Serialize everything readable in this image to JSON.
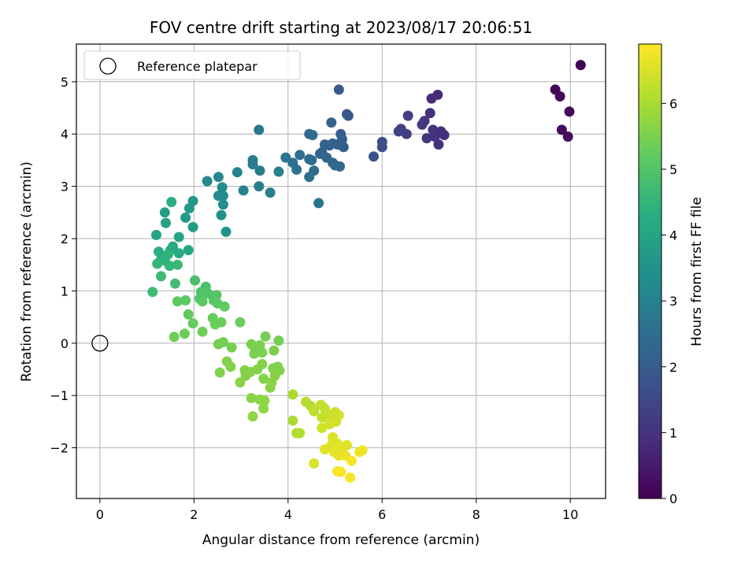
{
  "chart_data": {
    "type": "scatter",
    "title": "FOV centre drift starting at 2023/08/17 20:06:51",
    "xlabel": "Angular distance from reference (arcmin)",
    "ylabel": "Rotation from reference (arcmin)",
    "xlim": [
      -0.5,
      10.75
    ],
    "ylim": [
      -2.97,
      5.72
    ],
    "xticks": [
      0,
      2,
      4,
      6,
      8,
      10
    ],
    "yticks": [
      -2,
      -1,
      0,
      1,
      2,
      3,
      4,
      5
    ],
    "xtick_labels": [
      "0",
      "2",
      "4",
      "6",
      "8",
      "10"
    ],
    "ytick_labels": [
      "−2",
      "−1",
      "0",
      "1",
      "2",
      "3",
      "4",
      "5"
    ],
    "grid": true,
    "legend": {
      "placement": "top-left",
      "entries": [
        "Reference platepar"
      ]
    },
    "reference_point": {
      "x": 0,
      "y": 0,
      "marker": "hollow-circle"
    },
    "colorbar": {
      "label": "Hours from first FF file",
      "colormap": "viridis",
      "range": [
        0,
        6.9
      ],
      "ticks": [
        0,
        1,
        2,
        3,
        4,
        5,
        6
      ],
      "tick_labels": [
        "0",
        "1",
        "2",
        "3",
        "4",
        "5",
        "6"
      ]
    },
    "series": [
      {
        "points": [
          {
            "x": 10.22,
            "y": 5.32,
            "c": 0.0
          },
          {
            "x": 9.68,
            "y": 4.85,
            "c": 0.08
          },
          {
            "x": 9.78,
            "y": 4.72,
            "c": 0.12
          },
          {
            "x": 9.98,
            "y": 4.43,
            "c": 0.15
          },
          {
            "x": 9.82,
            "y": 4.08,
            "c": 0.2
          },
          {
            "x": 9.95,
            "y": 3.95,
            "c": 0.22
          },
          {
            "x": 7.18,
            "y": 4.75,
            "c": 0.8
          },
          {
            "x": 7.05,
            "y": 4.68,
            "c": 0.85
          },
          {
            "x": 7.02,
            "y": 4.4,
            "c": 0.95
          },
          {
            "x": 7.25,
            "y": 4.05,
            "c": 0.9
          },
          {
            "x": 7.32,
            "y": 3.98,
            "c": 0.95
          },
          {
            "x": 7.2,
            "y": 3.8,
            "c": 0.98
          },
          {
            "x": 7.08,
            "y": 4.08,
            "c": 1.05
          },
          {
            "x": 7.12,
            "y": 3.95,
            "c": 1.0
          },
          {
            "x": 6.95,
            "y": 3.92,
            "c": 1.05
          },
          {
            "x": 6.9,
            "y": 4.25,
            "c": 1.1
          },
          {
            "x": 6.85,
            "y": 4.18,
            "c": 1.15
          },
          {
            "x": 6.55,
            "y": 4.35,
            "c": 1.25
          },
          {
            "x": 6.52,
            "y": 4.0,
            "c": 1.3
          },
          {
            "x": 6.4,
            "y": 4.1,
            "c": 1.35
          },
          {
            "x": 6.35,
            "y": 4.05,
            "c": 1.35
          },
          {
            "x": 6.0,
            "y": 3.85,
            "c": 1.6
          },
          {
            "x": 6.0,
            "y": 3.75,
            "c": 1.65
          },
          {
            "x": 5.82,
            "y": 3.57,
            "c": 1.7
          },
          {
            "x": 5.25,
            "y": 4.38,
            "c": 1.85
          },
          {
            "x": 5.28,
            "y": 4.35,
            "c": 1.9
          },
          {
            "x": 5.08,
            "y": 4.85,
            "c": 1.95
          },
          {
            "x": 5.12,
            "y": 4.0,
            "c": 2.0
          },
          {
            "x": 5.15,
            "y": 3.9,
            "c": 2.05
          },
          {
            "x": 5.18,
            "y": 3.75,
            "c": 2.05
          },
          {
            "x": 5.05,
            "y": 3.8,
            "c": 2.1
          },
          {
            "x": 4.95,
            "y": 3.82,
            "c": 2.1
          },
          {
            "x": 4.88,
            "y": 3.78,
            "c": 2.15
          },
          {
            "x": 4.78,
            "y": 3.8,
            "c": 2.15
          },
          {
            "x": 4.92,
            "y": 4.22,
            "c": 2.15
          },
          {
            "x": 4.72,
            "y": 3.65,
            "c": 2.2
          },
          {
            "x": 4.68,
            "y": 3.62,
            "c": 2.25
          },
          {
            "x": 4.82,
            "y": 3.55,
            "c": 2.25
          },
          {
            "x": 4.95,
            "y": 3.45,
            "c": 2.3
          },
          {
            "x": 5.0,
            "y": 3.4,
            "c": 2.3
          },
          {
            "x": 5.1,
            "y": 3.38,
            "c": 2.35
          },
          {
            "x": 4.45,
            "y": 4.0,
            "c": 2.35
          },
          {
            "x": 4.52,
            "y": 3.98,
            "c": 2.4
          },
          {
            "x": 4.5,
            "y": 3.5,
            "c": 2.4
          },
          {
            "x": 4.45,
            "y": 3.52,
            "c": 2.45
          },
          {
            "x": 4.55,
            "y": 3.3,
            "c": 2.45
          },
          {
            "x": 4.45,
            "y": 3.18,
            "c": 2.5
          },
          {
            "x": 4.25,
            "y": 3.6,
            "c": 2.5
          },
          {
            "x": 4.18,
            "y": 3.32,
            "c": 2.55
          },
          {
            "x": 4.1,
            "y": 3.45,
            "c": 2.6
          },
          {
            "x": 3.95,
            "y": 3.55,
            "c": 2.65
          },
          {
            "x": 4.65,
            "y": 2.68,
            "c": 2.65
          },
          {
            "x": 3.38,
            "y": 4.08,
            "c": 2.75
          },
          {
            "x": 3.25,
            "y": 3.5,
            "c": 2.8
          },
          {
            "x": 3.25,
            "y": 3.42,
            "c": 2.85
          },
          {
            "x": 3.4,
            "y": 3.3,
            "c": 2.9
          },
          {
            "x": 3.38,
            "y": 3.0,
            "c": 2.95
          },
          {
            "x": 3.62,
            "y": 2.88,
            "c": 2.95
          },
          {
            "x": 3.8,
            "y": 3.28,
            "c": 3.0
          },
          {
            "x": 3.05,
            "y": 2.92,
            "c": 3.05
          },
          {
            "x": 2.92,
            "y": 3.27,
            "c": 3.1
          },
          {
            "x": 2.52,
            "y": 3.18,
            "c": 3.15
          },
          {
            "x": 2.28,
            "y": 3.1,
            "c": 3.2
          },
          {
            "x": 2.52,
            "y": 2.82,
            "c": 3.3
          },
          {
            "x": 2.62,
            "y": 2.82,
            "c": 3.35
          },
          {
            "x": 2.62,
            "y": 2.65,
            "c": 3.4
          },
          {
            "x": 2.58,
            "y": 2.45,
            "c": 3.45
          },
          {
            "x": 2.68,
            "y": 2.13,
            "c": 3.5
          },
          {
            "x": 2.6,
            "y": 2.98,
            "c": 3.3
          },
          {
            "x": 1.98,
            "y": 2.72,
            "c": 3.65
          },
          {
            "x": 1.9,
            "y": 2.58,
            "c": 3.7
          },
          {
            "x": 1.82,
            "y": 2.4,
            "c": 3.75
          },
          {
            "x": 1.98,
            "y": 2.22,
            "c": 3.8
          },
          {
            "x": 1.38,
            "y": 2.5,
            "c": 3.85
          },
          {
            "x": 1.4,
            "y": 2.3,
            "c": 3.9
          },
          {
            "x": 1.52,
            "y": 2.7,
            "c": 4.3
          },
          {
            "x": 1.2,
            "y": 2.07,
            "c": 4.0
          },
          {
            "x": 1.68,
            "y": 2.03,
            "c": 4.05
          },
          {
            "x": 1.88,
            "y": 1.78,
            "c": 4.1
          },
          {
            "x": 1.55,
            "y": 1.85,
            "c": 4.15
          },
          {
            "x": 1.5,
            "y": 1.78,
            "c": 4.2
          },
          {
            "x": 1.68,
            "y": 1.72,
            "c": 4.25
          },
          {
            "x": 1.25,
            "y": 1.75,
            "c": 4.3
          },
          {
            "x": 1.3,
            "y": 1.6,
            "c": 4.35
          },
          {
            "x": 1.38,
            "y": 1.58,
            "c": 4.4
          },
          {
            "x": 1.45,
            "y": 1.7,
            "c": 4.45
          },
          {
            "x": 1.22,
            "y": 1.52,
            "c": 4.5
          },
          {
            "x": 1.48,
            "y": 1.48,
            "c": 4.55
          },
          {
            "x": 1.65,
            "y": 1.5,
            "c": 4.6
          },
          {
            "x": 1.3,
            "y": 1.28,
            "c": 4.65
          },
          {
            "x": 1.12,
            "y": 0.98,
            "c": 4.7
          },
          {
            "x": 1.6,
            "y": 1.14,
            "c": 4.75
          },
          {
            "x": 2.02,
            "y": 1.2,
            "c": 4.85
          },
          {
            "x": 2.25,
            "y": 1.08,
            "c": 4.9
          },
          {
            "x": 2.15,
            "y": 0.98,
            "c": 4.95
          },
          {
            "x": 2.3,
            "y": 0.95,
            "c": 5.0
          },
          {
            "x": 2.12,
            "y": 0.85,
            "c": 5.0
          },
          {
            "x": 2.48,
            "y": 0.92,
            "c": 5.05
          },
          {
            "x": 2.42,
            "y": 0.82,
            "c": 5.05
          },
          {
            "x": 2.18,
            "y": 0.8,
            "c": 5.1
          },
          {
            "x": 2.5,
            "y": 0.76,
            "c": 5.1
          },
          {
            "x": 1.82,
            "y": 0.82,
            "c": 5.15
          },
          {
            "x": 1.65,
            "y": 0.8,
            "c": 5.15
          },
          {
            "x": 2.65,
            "y": 0.7,
            "c": 5.2
          },
          {
            "x": 1.88,
            "y": 0.55,
            "c": 5.2
          },
          {
            "x": 2.4,
            "y": 0.48,
            "c": 5.25
          },
          {
            "x": 1.98,
            "y": 0.38,
            "c": 5.25
          },
          {
            "x": 2.45,
            "y": 0.36,
            "c": 5.3
          },
          {
            "x": 2.58,
            "y": 0.4,
            "c": 5.3
          },
          {
            "x": 2.98,
            "y": 0.4,
            "c": 5.3
          },
          {
            "x": 2.18,
            "y": 0.22,
            "c": 5.35
          },
          {
            "x": 1.8,
            "y": 0.18,
            "c": 5.35
          },
          {
            "x": 1.58,
            "y": 0.12,
            "c": 5.35
          },
          {
            "x": 2.52,
            "y": -0.02,
            "c": 5.4
          },
          {
            "x": 2.62,
            "y": 0.02,
            "c": 5.4
          },
          {
            "x": 2.8,
            "y": -0.08,
            "c": 5.45
          },
          {
            "x": 3.22,
            "y": -0.02,
            "c": 5.45
          },
          {
            "x": 3.3,
            "y": -0.1,
            "c": 5.45
          },
          {
            "x": 3.4,
            "y": -0.04,
            "c": 5.5
          },
          {
            "x": 3.28,
            "y": -0.2,
            "c": 5.5
          },
          {
            "x": 3.45,
            "y": -0.18,
            "c": 5.5
          },
          {
            "x": 3.7,
            "y": -0.14,
            "c": 5.5
          },
          {
            "x": 3.8,
            "y": 0.05,
            "c": 5.4
          },
          {
            "x": 3.52,
            "y": 0.13,
            "c": 5.4
          },
          {
            "x": 2.7,
            "y": -0.35,
            "c": 5.55
          },
          {
            "x": 2.78,
            "y": -0.45,
            "c": 5.55
          },
          {
            "x": 2.55,
            "y": -0.56,
            "c": 5.55
          },
          {
            "x": 3.08,
            "y": -0.52,
            "c": 5.6
          },
          {
            "x": 3.2,
            "y": -0.55,
            "c": 5.6
          },
          {
            "x": 3.35,
            "y": -0.5,
            "c": 5.6
          },
          {
            "x": 3.45,
            "y": -0.4,
            "c": 5.6
          },
          {
            "x": 3.68,
            "y": -0.48,
            "c": 5.55
          },
          {
            "x": 3.78,
            "y": -0.45,
            "c": 5.55
          },
          {
            "x": 3.82,
            "y": -0.52,
            "c": 5.55
          },
          {
            "x": 3.72,
            "y": -0.62,
            "c": 5.6
          },
          {
            "x": 3.48,
            "y": -0.68,
            "c": 5.6
          },
          {
            "x": 3.1,
            "y": -0.62,
            "c": 5.6
          },
          {
            "x": 2.98,
            "y": -0.75,
            "c": 5.65
          },
          {
            "x": 3.65,
            "y": -0.75,
            "c": 5.65
          },
          {
            "x": 3.62,
            "y": -0.85,
            "c": 5.65
          },
          {
            "x": 3.22,
            "y": -1.05,
            "c": 5.65
          },
          {
            "x": 3.4,
            "y": -1.08,
            "c": 5.7
          },
          {
            "x": 3.5,
            "y": -1.1,
            "c": 5.7
          },
          {
            "x": 3.48,
            "y": -1.25,
            "c": 5.7
          },
          {
            "x": 3.25,
            "y": -1.4,
            "c": 5.7
          },
          {
            "x": 4.1,
            "y": -0.98,
            "c": 6.0
          },
          {
            "x": 4.38,
            "y": -1.12,
            "c": 6.1
          },
          {
            "x": 4.48,
            "y": -1.2,
            "c": 6.15
          },
          {
            "x": 4.55,
            "y": -1.3,
            "c": 6.2
          },
          {
            "x": 4.7,
            "y": -1.18,
            "c": 6.25
          },
          {
            "x": 4.78,
            "y": -1.25,
            "c": 6.25
          },
          {
            "x": 4.82,
            "y": -1.35,
            "c": 6.3
          },
          {
            "x": 4.72,
            "y": -1.42,
            "c": 6.3
          },
          {
            "x": 4.92,
            "y": -1.4,
            "c": 6.35
          },
          {
            "x": 5.0,
            "y": -1.32,
            "c": 6.35
          },
          {
            "x": 5.08,
            "y": -1.38,
            "c": 6.4
          },
          {
            "x": 4.1,
            "y": -1.48,
            "c": 6.0
          },
          {
            "x": 4.72,
            "y": -1.62,
            "c": 6.4
          },
          {
            "x": 4.88,
            "y": -1.55,
            "c": 6.45
          },
          {
            "x": 5.02,
            "y": -1.5,
            "c": 6.45
          },
          {
            "x": 4.18,
            "y": -1.72,
            "c": 6.05
          },
          {
            "x": 4.25,
            "y": -1.72,
            "c": 6.1
          },
          {
            "x": 4.95,
            "y": -1.8,
            "c": 6.5
          },
          {
            "x": 5.05,
            "y": -1.92,
            "c": 6.55
          },
          {
            "x": 4.92,
            "y": -1.95,
            "c": 6.55
          },
          {
            "x": 5.15,
            "y": -2.0,
            "c": 6.6
          },
          {
            "x": 5.25,
            "y": -1.95,
            "c": 6.6
          },
          {
            "x": 4.78,
            "y": -2.03,
            "c": 6.6
          },
          {
            "x": 4.98,
            "y": -2.08,
            "c": 6.65
          },
          {
            "x": 5.08,
            "y": -2.15,
            "c": 6.65
          },
          {
            "x": 5.22,
            "y": -2.15,
            "c": 6.7
          },
          {
            "x": 5.58,
            "y": -2.05,
            "c": 6.75
          },
          {
            "x": 5.52,
            "y": -2.08,
            "c": 6.75
          },
          {
            "x": 5.35,
            "y": -2.25,
            "c": 6.8
          },
          {
            "x": 4.55,
            "y": -2.3,
            "c": 6.5
          },
          {
            "x": 5.05,
            "y": -2.45,
            "c": 6.8
          },
          {
            "x": 5.12,
            "y": -2.46,
            "c": 6.85
          },
          {
            "x": 5.32,
            "y": -2.57,
            "c": 6.85
          }
        ]
      }
    ]
  }
}
